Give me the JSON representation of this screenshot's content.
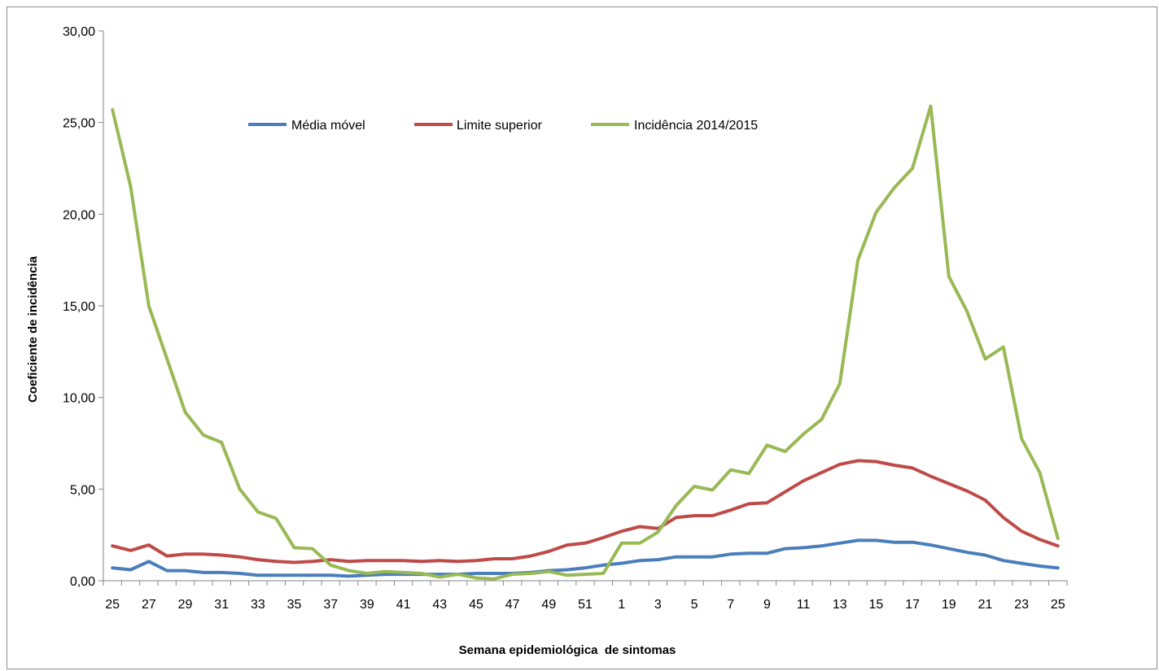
{
  "chart_data": {
    "type": "line",
    "title": "",
    "xlabel": "Semana epidemiológica  de sintomas",
    "ylabel": "Coeficiente de incidência",
    "ylim": [
      0,
      30
    ],
    "yticks": [
      "0,00",
      "5,00",
      "10,00",
      "15,00",
      "20,00",
      "25,00",
      "30,00"
    ],
    "grid": false,
    "legend_position": "top-center",
    "categories": [
      "25",
      "26",
      "27",
      "28",
      "29",
      "30",
      "31",
      "32",
      "33",
      "34",
      "35",
      "36",
      "37",
      "38",
      "39",
      "40",
      "41",
      "42",
      "43",
      "44",
      "45",
      "46",
      "47",
      "48",
      "49",
      "50",
      "51",
      "52",
      "1",
      "2",
      "3",
      "4",
      "5",
      "6",
      "7",
      "8",
      "9",
      "10",
      "11",
      "12",
      "13",
      "14",
      "15",
      "16",
      "17",
      "18",
      "19",
      "20",
      "21",
      "22",
      "23",
      "24",
      "25"
    ],
    "series": [
      {
        "name": "Média móvel",
        "color": "#4a7ebb",
        "values": [
          0.7,
          0.6,
          1.05,
          0.55,
          0.55,
          0.45,
          0.45,
          0.4,
          0.3,
          0.3,
          0.3,
          0.3,
          0.3,
          0.25,
          0.3,
          0.35,
          0.35,
          0.35,
          0.35,
          0.35,
          0.4,
          0.4,
          0.4,
          0.45,
          0.55,
          0.6,
          0.7,
          0.85,
          0.95,
          1.1,
          1.15,
          1.3,
          1.3,
          1.3,
          1.45,
          1.5,
          1.5,
          1.75,
          1.8,
          1.9,
          2.05,
          2.2,
          2.2,
          2.1,
          2.1,
          1.95,
          1.75,
          1.55,
          1.4,
          1.1,
          0.95,
          0.8,
          0.7
        ]
      },
      {
        "name": "Limite superior",
        "color": "#be4b48",
        "values": [
          1.9,
          1.65,
          1.95,
          1.35,
          1.45,
          1.45,
          1.4,
          1.3,
          1.15,
          1.05,
          1.0,
          1.05,
          1.15,
          1.05,
          1.1,
          1.1,
          1.1,
          1.05,
          1.1,
          1.05,
          1.1,
          1.2,
          1.2,
          1.35,
          1.6,
          1.95,
          2.05,
          2.35,
          2.7,
          2.95,
          2.85,
          3.45,
          3.55,
          3.55,
          3.85,
          4.2,
          4.25,
          4.85,
          5.45,
          5.9,
          6.35,
          6.55,
          6.5,
          6.3,
          6.15,
          5.7,
          5.3,
          4.9,
          4.4,
          3.45,
          2.7,
          2.25,
          1.9
        ]
      },
      {
        "name": "Incidência 2014/2015",
        "color": "#98b954",
        "values": [
          25.7,
          21.5,
          15.0,
          12.1,
          9.2,
          7.95,
          7.55,
          5.0,
          3.75,
          3.4,
          1.8,
          1.75,
          0.85,
          0.55,
          0.4,
          0.5,
          0.45,
          0.4,
          0.2,
          0.35,
          0.15,
          0.1,
          0.35,
          0.4,
          0.5,
          0.3,
          0.35,
          0.4,
          2.05,
          2.05,
          2.65,
          4.1,
          5.15,
          4.95,
          6.05,
          5.85,
          7.4,
          7.05,
          8.0,
          8.8,
          10.75,
          17.5,
          20.1,
          21.45,
          22.5,
          25.9,
          16.6,
          14.7,
          12.1,
          12.75,
          7.75,
          5.9,
          2.3
        ]
      }
    ]
  }
}
